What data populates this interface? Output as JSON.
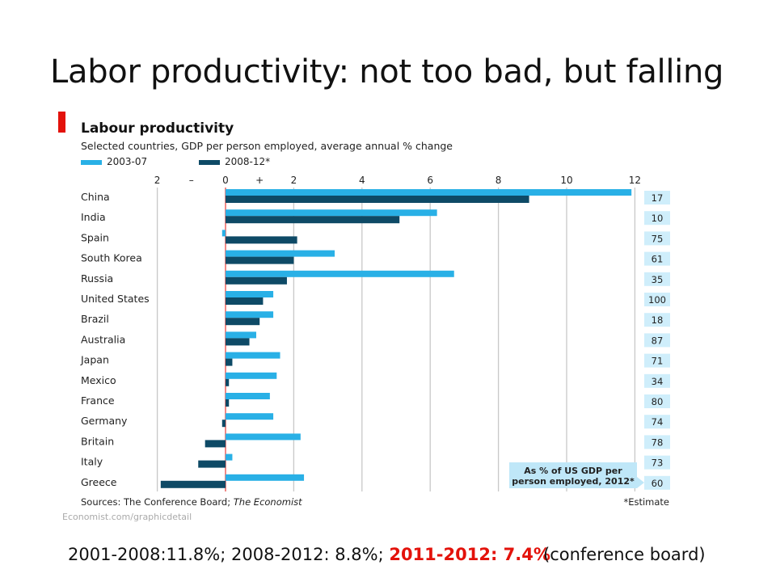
{
  "slide": {
    "title": "Labor productivity: not too bad, but falling",
    "footer_text": "2001-2008:11.8%; 2008-2012: 8.8%; ",
    "footer_highlight": "2011-2012: 7.4%",
    "footer_source": "(conference board)"
  },
  "colors": {
    "series1": "#29b0e6",
    "series2": "#0e4a66",
    "accent_red": "#e3120b",
    "box_fill": "#cfeefb"
  },
  "chart_data": {
    "type": "bar",
    "orientation": "horizontal",
    "title": "Labour productivity",
    "subtitle": "Selected countries, GDP per person employed, average annual % change",
    "categories": [
      "China",
      "India",
      "Spain",
      "South Korea",
      "Russia",
      "United States",
      "Brazil",
      "Australia",
      "Japan",
      "Mexico",
      "France",
      "Germany",
      "Britain",
      "Italy",
      "Greece"
    ],
    "series": [
      {
        "name": "2003-07",
        "values": [
          11.9,
          6.2,
          -0.1,
          3.2,
          6.7,
          1.4,
          1.4,
          0.9,
          1.6,
          1.5,
          1.3,
          1.4,
          2.2,
          0.2,
          2.3
        ]
      },
      {
        "name": "2008-12*",
        "values": [
          8.9,
          5.1,
          2.1,
          2.0,
          1.8,
          1.1,
          1.0,
          0.7,
          0.2,
          0.1,
          0.1,
          -0.1,
          -0.6,
          -0.8,
          -1.9
        ]
      }
    ],
    "x_ticks": [
      "2",
      "–",
      "0",
      "+",
      "2",
      "4",
      "6",
      "8",
      "10",
      "12"
    ],
    "xlim": [
      -2,
      12
    ],
    "grid": true,
    "legend": "top-left",
    "side_column": {
      "label": "As % of US GDP per person employed, 2012*",
      "values": [
        "17",
        "10",
        "75",
        "61",
        "35",
        "100",
        "18",
        "87",
        "71",
        "34",
        "80",
        "74",
        "78",
        "73",
        "60"
      ]
    },
    "sources": "Sources: The Conference Board; ",
    "sources_italic": "The Economist",
    "footnote": "*Estimate",
    "credit": "Economist.com/graphicdetail"
  }
}
